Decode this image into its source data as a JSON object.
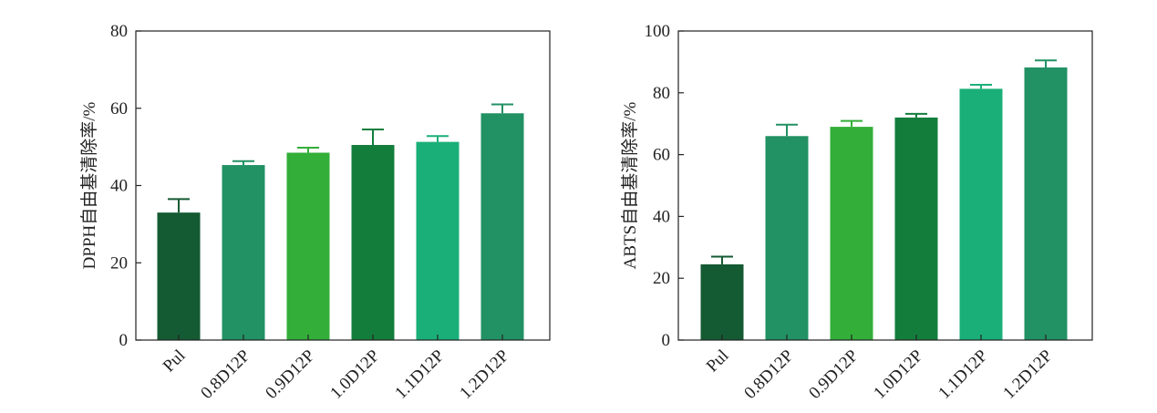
{
  "chart_data": [
    {
      "type": "bar",
      "categories": [
        "Pul",
        "0.8D12P",
        "0.9D12P",
        "1.0D12P",
        "1.1D12P",
        "1.2D12P"
      ],
      "values": [
        33,
        45.3,
        48.5,
        50.5,
        51.3,
        58.7
      ],
      "errors": [
        3.5,
        1.0,
        1.3,
        4.0,
        1.5,
        2.3
      ],
      "colors": [
        "#145a32",
        "#229164",
        "#33ae38",
        "#137e3c",
        "#1aaf78",
        "#229164"
      ],
      "ylabel": "DPPH自由基清除率/%",
      "xlabel": "",
      "ylim": [
        0,
        80
      ],
      "yticks": [
        "0",
        "20",
        "40",
        "60",
        "80"
      ],
      "grid": false
    },
    {
      "type": "bar",
      "categories": [
        "Pul",
        "0.8D12P",
        "0.9D12P",
        "1.0D12P",
        "1.1D12P",
        "1.2D12P"
      ],
      "values": [
        24.5,
        66,
        69,
        72,
        81.3,
        88.2
      ],
      "errors": [
        2.5,
        3.7,
        1.9,
        1.2,
        1.3,
        2.3
      ],
      "colors": [
        "#145a32",
        "#229164",
        "#33ae38",
        "#137e3c",
        "#1aaf78",
        "#229164"
      ],
      "ylabel": "ABTS自由基清除率/%",
      "xlabel": "",
      "ylim": [
        0,
        100
      ],
      "yticks": [
        "0",
        "20",
        "40",
        "60",
        "80",
        "100"
      ],
      "grid": false
    }
  ]
}
